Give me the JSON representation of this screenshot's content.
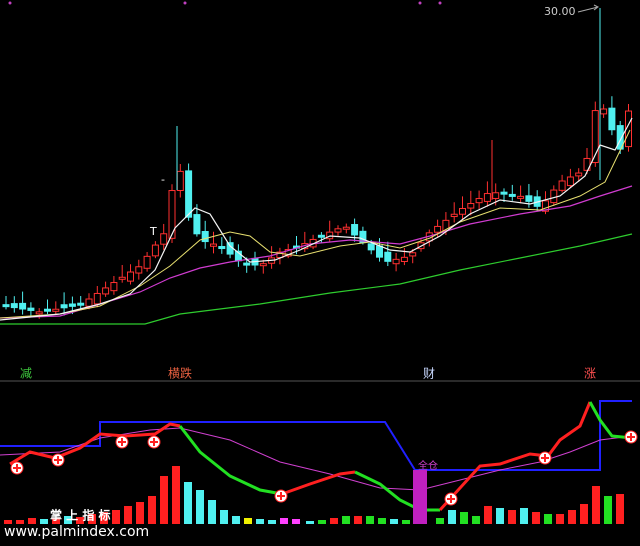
{
  "price_panel": {
    "price_marker": "30.00",
    "signals": [
      "T",
      "-"
    ]
  },
  "divider_labels": [
    "减",
    "横跌",
    "财",
    "涨"
  ],
  "indicator_panel": {
    "position_label": "全仓",
    "brand": "掌 上 指 标",
    "website": "www.palmindex.com"
  }
}
